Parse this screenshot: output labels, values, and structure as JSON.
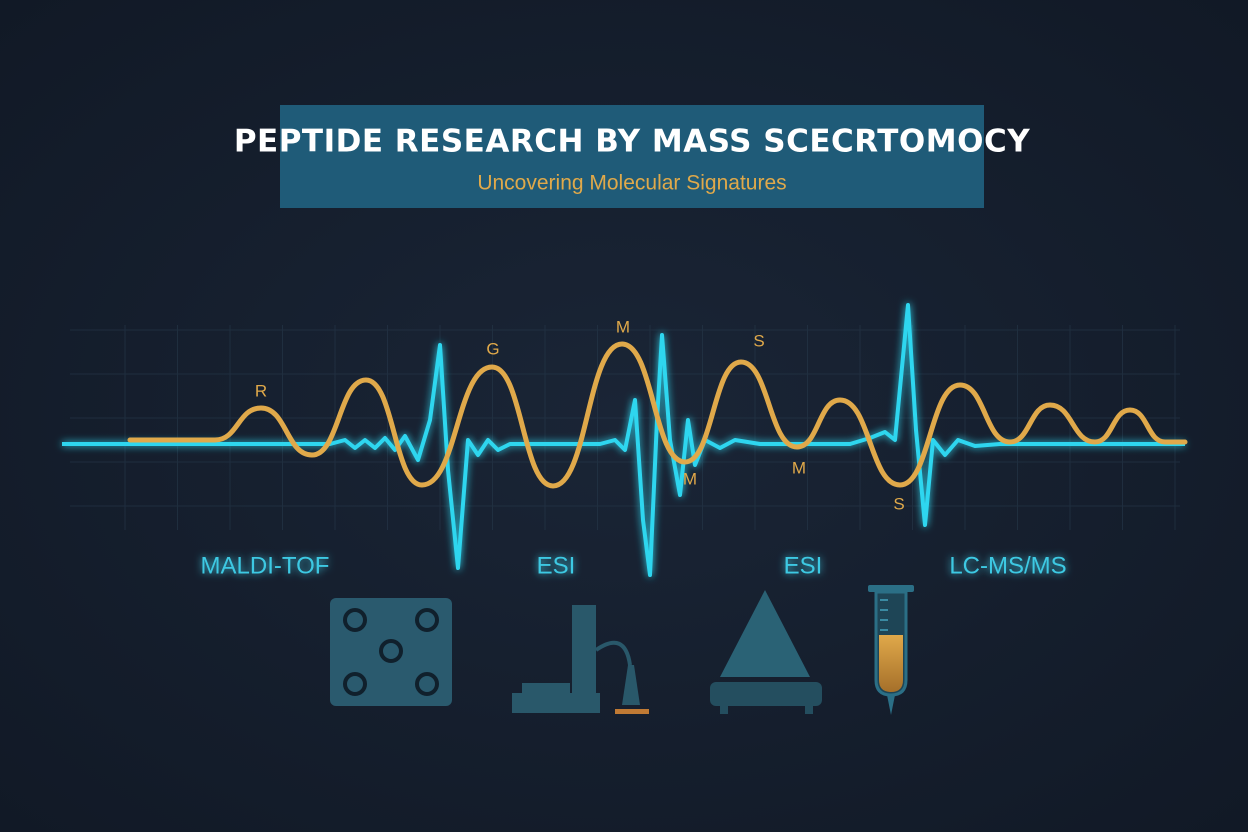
{
  "header": {
    "title": "PEPTIDE RESEARCH BY MASS SCECRTOMOCY",
    "subtitle": "Uncovering Molecular Signatures"
  },
  "peak_labels": [
    "R",
    "G",
    "M",
    "S",
    "M",
    "M",
    "S"
  ],
  "techniques": [
    "MALDI-TOF",
    "ESI",
    "ESI",
    "LC-MS/MS"
  ]
}
